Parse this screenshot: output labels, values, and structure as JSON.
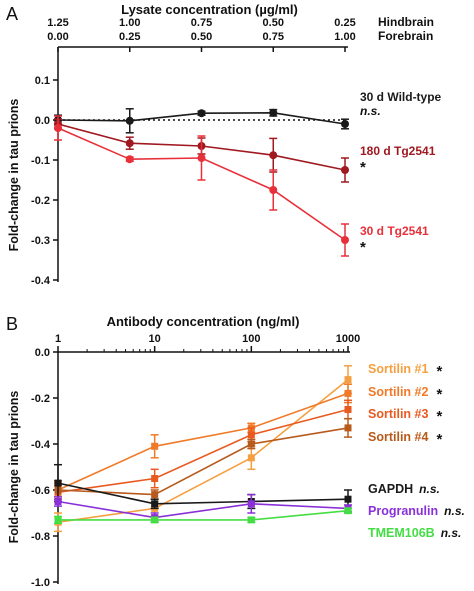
{
  "chart_data": [
    {
      "panel_label": "A",
      "type": "line",
      "title": "Lysate concentration (µg/ml)",
      "ylabel": "Fold-change in tau prions",
      "ylim": [
        -0.4,
        0.1
      ],
      "yticks": [
        "0.1",
        "0.0",
        "-0.1",
        "-0.2",
        "-0.3",
        "-0.4"
      ],
      "ytick_values": [
        0.1,
        0.0,
        -0.1,
        -0.2,
        -0.3,
        -0.4
      ],
      "x_index": [
        0,
        1,
        2,
        3,
        4
      ],
      "xaxis_rows": [
        {
          "name": "Hindbrain",
          "ticks": [
            "1.25",
            "1.00",
            "0.75",
            "0.50",
            "0.25"
          ]
        },
        {
          "name": "Forebrain",
          "ticks": [
            "0.00",
            "0.25",
            "0.50",
            "0.75",
            "1.00"
          ]
        }
      ],
      "reference_line": 0.0,
      "series": [
        {
          "name": "30 d Wild-type",
          "stat": "n.s.",
          "color": "#1a1a1a",
          "dashed": true,
          "values": [
            0.0,
            -0.002,
            0.017,
            0.018,
            -0.01
          ],
          "errors": [
            0.012,
            0.03,
            0.005,
            0.008,
            0.012
          ]
        },
        {
          "name": "180 d Tg2541",
          "stat": "*",
          "color": "#a01820",
          "dashed": false,
          "values": [
            -0.01,
            -0.058,
            -0.065,
            -0.088,
            -0.125
          ],
          "errors": [
            0.012,
            0.015,
            0.02,
            0.042,
            0.03
          ]
        },
        {
          "name": "30 d Tg2541",
          "stat": "*",
          "color": "#e8303a",
          "dashed": false,
          "values": [
            -0.02,
            -0.098,
            -0.095,
            -0.175,
            -0.3
          ],
          "errors": [
            0.03,
            0.005,
            0.055,
            0.05,
            0.04
          ]
        }
      ]
    },
    {
      "panel_label": "B",
      "type": "line",
      "title": "Antibody concentration (ng/ml)",
      "ylabel": "Fold-change in tau prions",
      "xscale": "log",
      "x": [
        1,
        10,
        100,
        1000
      ],
      "xticks": [
        "1",
        "10",
        "100",
        "1000"
      ],
      "ylim": [
        -1.0,
        0.0
      ],
      "yticks": [
        "0.0",
        "-0.2",
        "-0.4",
        "-0.6",
        "-0.8",
        "-1.0"
      ],
      "ytick_values": [
        0.0,
        -0.2,
        -0.4,
        -0.6,
        -0.8,
        -1.0
      ],
      "series": [
        {
          "name": "Sortilin #1",
          "stat": "*",
          "color": "#f5a040",
          "values": [
            -0.74,
            -0.68,
            -0.46,
            -0.12
          ],
          "errors": [
            0.04,
            0.03,
            0.05,
            0.06
          ]
        },
        {
          "name": "Sortilin #2",
          "stat": "*",
          "color": "#f07a28",
          "values": [
            -0.6,
            -0.41,
            -0.33,
            -0.18
          ],
          "errors": [
            0.03,
            0.05,
            0.02,
            0.04
          ]
        },
        {
          "name": "Sortilin #3",
          "stat": "*",
          "color": "#e85a20",
          "values": [
            -0.61,
            -0.55,
            -0.36,
            -0.25
          ],
          "errors": [
            0.03,
            0.04,
            0.03,
            0.04
          ]
        },
        {
          "name": "Sortilin #4",
          "stat": "*",
          "color": "#b85a1c",
          "values": [
            -0.6,
            -0.62,
            -0.4,
            -0.33
          ],
          "errors": [
            0.04,
            0.02,
            0.02,
            0.04
          ]
        },
        {
          "name": "GAPDH",
          "stat": "n.s.",
          "color": "#1a1a1a",
          "values": [
            -0.57,
            -0.66,
            -0.65,
            -0.64
          ],
          "errors": [
            0.08,
            0.02,
            0.03,
            0.04
          ]
        },
        {
          "name": "Progranulin",
          "stat": "n.s.",
          "color": "#8a30d8",
          "values": [
            -0.65,
            -0.72,
            -0.66,
            -0.68
          ],
          "errors": [
            0.02,
            0.02,
            0.04,
            0.015
          ]
        },
        {
          "name": "TMEM106B",
          "stat": "n.s.",
          "color": "#44dd44",
          "values": [
            -0.73,
            -0.73,
            -0.73,
            -0.69
          ],
          "errors": [
            0.015,
            0.01,
            0.01,
            0.01
          ]
        }
      ]
    }
  ]
}
